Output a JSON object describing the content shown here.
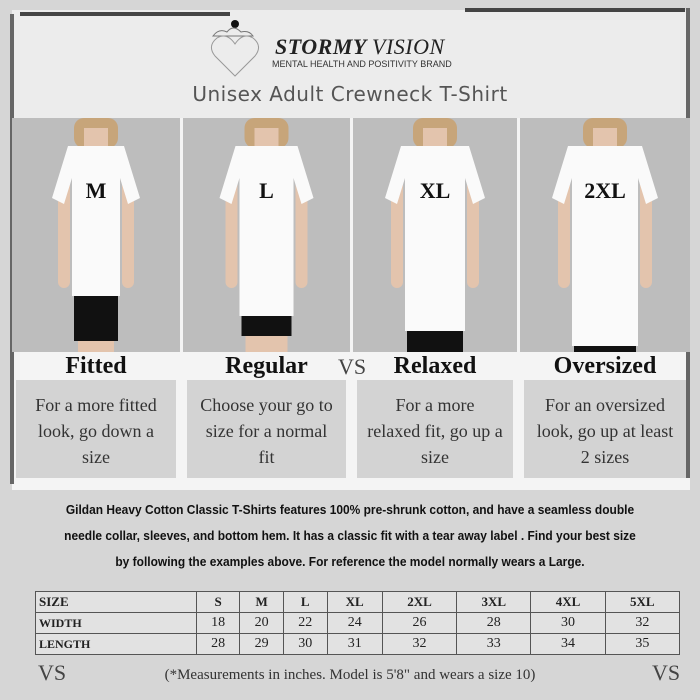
{
  "brand": {
    "name_bold": "STORMY",
    "name_light": "VISION",
    "tagline": "MENTAL HEALTH AND POSITIVITY BRAND"
  },
  "title": "Unisex Adult Crewneck T-Shirt",
  "models": [
    {
      "size": "M",
      "fit": "Fitted",
      "desc": "For a more fitted look, go down a size"
    },
    {
      "size": "L",
      "fit": "Regular",
      "desc": "Choose your go to size for a normal fit"
    },
    {
      "size": "XL",
      "fit": "Relaxed",
      "desc": "For a more relaxed fit, go up a size"
    },
    {
      "size": "2XL",
      "fit": "Oversized",
      "desc": "For an oversized look, go up at least 2 sizes"
    }
  ],
  "monogram": "VS",
  "description": "Gildan Heavy Cotton Classic T-Shirts features 100% pre-shrunk cotton, and have a seamless double needle collar, sleeves, and bottom hem. It has a classic fit with a tear away label . Find your best size by following the examples above.  For reference the model normally wears a Large.",
  "table": {
    "headers": [
      "SIZE",
      "S",
      "M",
      "L",
      "XL",
      "2XL",
      "3XL",
      "4XL",
      "5XL"
    ],
    "rows": [
      [
        "WIDTH",
        "18",
        "20",
        "22",
        "24",
        "26",
        "28",
        "30",
        "32"
      ],
      [
        "LENGTH",
        "28",
        "29",
        "30",
        "31",
        "32",
        "33",
        "34",
        "35"
      ]
    ]
  },
  "note": "(*Measurements in inches. Model is 5'8\" and wears a size 10)"
}
